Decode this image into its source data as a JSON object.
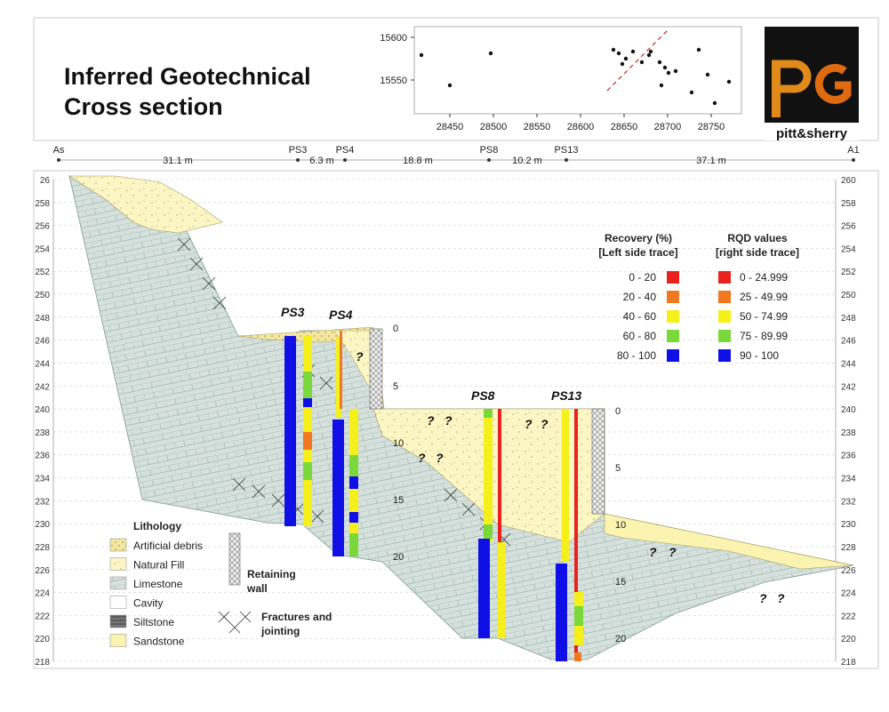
{
  "header": {
    "title_line1": "Inferred Geotechnical",
    "title_line2": "Cross section",
    "logo_text": "pitt&sherry"
  },
  "location_map": {
    "y_ticks": [
      "15600",
      "15550"
    ],
    "x_ticks": [
      "28450",
      "28500",
      "28550",
      "28600",
      "28650",
      "28700",
      "28750"
    ]
  },
  "section_line": {
    "start_label": "As",
    "end_label": "A1",
    "stations": [
      {
        "name": "PS3"
      },
      {
        "name": "PS4"
      },
      {
        "name": "PS8"
      },
      {
        "name": "PS13"
      }
    ],
    "distances": [
      "31.1 m",
      "6.3 m",
      "18.8 m",
      "10.2 m",
      "37.1 m"
    ]
  },
  "section": {
    "elevation_min": 218,
    "elevation_max": 260,
    "elevation_step": 2,
    "elevation_labels": [
      "260",
      "258",
      "256",
      "254",
      "252",
      "250",
      "248",
      "246",
      "244",
      "242",
      "240",
      "238",
      "236",
      "234",
      "232",
      "230",
      "228",
      "226",
      "224",
      "222",
      "220",
      "218"
    ],
    "top_left_label": "26",
    "borehole_names": [
      "PS3",
      "PS4",
      "PS8",
      "PS13"
    ],
    "depth_scale_ps4": [
      "0",
      "5",
      "10",
      "15",
      "20"
    ],
    "depth_scale_ps13": [
      "0",
      "5",
      "10",
      "15",
      "20"
    ],
    "unknown_marker": "?"
  },
  "legend_recovery": {
    "heading_line1": "Recovery (%)",
    "heading_line2": "[Left side trace]",
    "items": [
      {
        "label": "0 - 20",
        "color": "#e8231f"
      },
      {
        "label": "20 - 40",
        "color": "#f07820"
      },
      {
        "label": "40 - 60",
        "color": "#f5ef1c"
      },
      {
        "label": "60 - 80",
        "color": "#7bd83a"
      },
      {
        "label": "80 - 100",
        "color": "#1010e6"
      }
    ]
  },
  "legend_rqd": {
    "heading_line1": "RQD values",
    "heading_line2": "[right side trace]",
    "items": [
      {
        "label": "0 - 24.999",
        "color": "#e8231f"
      },
      {
        "label": "25 - 49.99",
        "color": "#f07820"
      },
      {
        "label": "50 - 74.99",
        "color": "#f5ef1c"
      },
      {
        "label": "75 - 89.99",
        "color": "#7bd83a"
      },
      {
        "label": "90 - 100",
        "color": "#1010e6"
      }
    ]
  },
  "legend_lithology": {
    "heading": "Lithology",
    "items": [
      {
        "label": "Artificial debris",
        "color": "#f3e7a2"
      },
      {
        "label": "Natural Fill",
        "color": "#fbf6c4"
      },
      {
        "label": "Limestone",
        "color": "#d6e0dc"
      },
      {
        "label": "Cavity",
        "color": "#ffffff"
      },
      {
        "label": "Siltstone",
        "color": "#8a8a8a"
      },
      {
        "label": "Sandstone",
        "color": "#fbf3b0"
      }
    ],
    "retaining_wall_line1": "Retaining",
    "retaining_wall_line2": "wall",
    "fractures_line1": "Fractures and",
    "fractures_line2": "jointing"
  }
}
